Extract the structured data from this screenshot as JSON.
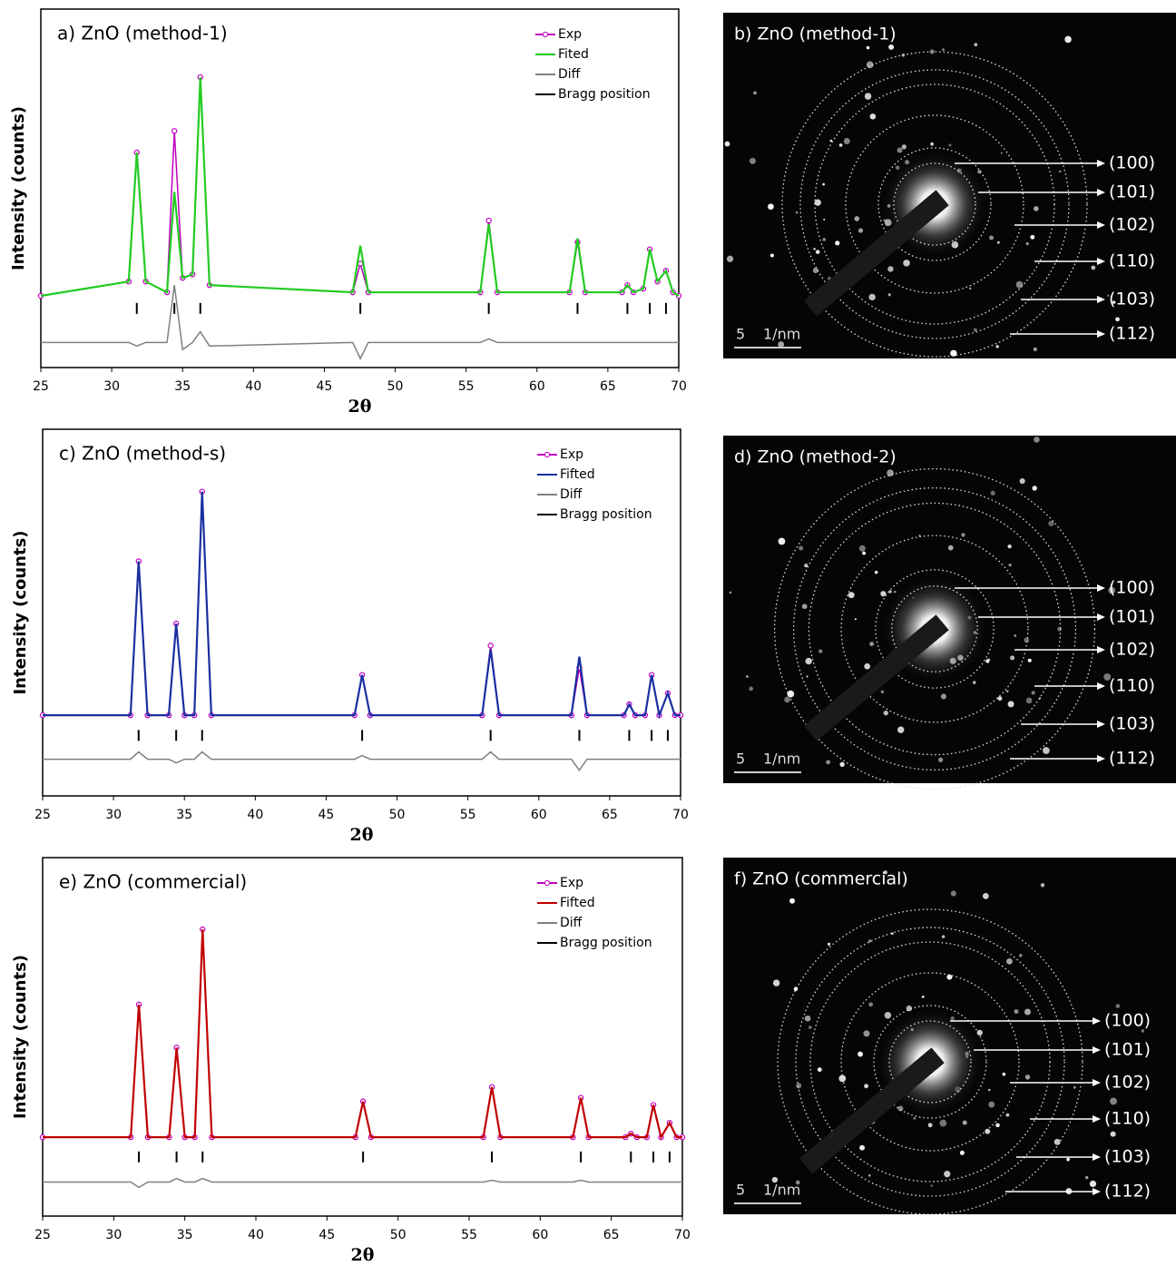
{
  "chart_data": [
    {
      "type": "line",
      "title": "a) ZnO (method-1)",
      "xlabel": "2θ",
      "ylabel": "Intensity (counts)",
      "grid": false,
      "xlim": [
        25,
        70
      ],
      "xticks": [
        25,
        30,
        35,
        40,
        45,
        50,
        55,
        60,
        65,
        70
      ],
      "ylim": [
        0,
        100
      ],
      "x": [
        25,
        31.2,
        31.77,
        32.4,
        33.9,
        34.42,
        35.0,
        35.7,
        36.25,
        36.9,
        47.0,
        47.54,
        48.1,
        56.0,
        56.6,
        57.2,
        62.3,
        62.86,
        63.4,
        66.0,
        66.38,
        66.8,
        67.5,
        67.96,
        68.5,
        69.1,
        69.6,
        70
      ],
      "series": [
        {
          "name": "Exp",
          "color": "#c000c0",
          "values": [
            20,
            24,
            60,
            24,
            21,
            66,
            25,
            26,
            81,
            23,
            21,
            29,
            21,
            21,
            41,
            21,
            21,
            35,
            21,
            21,
            23,
            21,
            22,
            33,
            24,
            27,
            21,
            20
          ]
        },
        {
          "name": "Fited",
          "color": "#22cc22",
          "values": [
            20,
            24,
            60,
            24,
            21,
            49,
            25,
            26,
            81,
            23,
            21,
            34,
            21,
            21,
            40,
            21,
            21,
            36,
            21,
            21,
            23,
            21,
            22,
            33,
            24,
            27,
            21,
            20
          ]
        },
        {
          "name": "Diff",
          "color": "#808080",
          "values": [
            7,
            7,
            6,
            7,
            7,
            23,
            5,
            7,
            10,
            6,
            7,
            2.5,
            7,
            7,
            8,
            7,
            7,
            7,
            7,
            7,
            7,
            7,
            7,
            7,
            7,
            7,
            7,
            7
          ]
        },
        {
          "name": "Bragg position",
          "color": "#000000",
          "x": [
            31.77,
            34.42,
            36.25,
            47.54,
            56.6,
            62.86,
            66.38,
            67.96,
            69.1
          ]
        }
      ]
    },
    {
      "type": "line",
      "title": "c) ZnO (method-s)",
      "xlabel": "2θ",
      "ylabel": "Intensity (counts)",
      "grid": false,
      "xlim": [
        25,
        70
      ],
      "xticks": [
        25,
        30,
        35,
        40,
        45,
        50,
        55,
        60,
        65,
        70
      ],
      "ylim": [
        0,
        100
      ],
      "x": [
        25,
        31.2,
        31.77,
        32.4,
        33.9,
        34.42,
        35.0,
        35.7,
        36.25,
        36.9,
        47.0,
        47.54,
        48.1,
        56.0,
        56.6,
        57.2,
        62.3,
        62.86,
        63.4,
        66.0,
        66.38,
        66.8,
        67.5,
        67.96,
        68.5,
        69.1,
        69.6,
        70
      ],
      "series": [
        {
          "name": "Exp",
          "color": "#c000c0",
          "values": [
            22,
            22,
            64,
            22,
            22,
            47,
            22,
            22,
            83,
            22,
            22,
            33,
            22,
            22,
            41,
            22,
            22,
            35,
            22,
            22,
            25,
            22,
            22,
            33,
            22,
            28,
            22,
            22
          ]
        },
        {
          "name": "Fifted",
          "color": "#1a2fa0",
          "values": [
            22,
            22,
            64,
            22,
            22,
            47,
            22,
            22,
            83,
            22,
            22,
            33,
            22,
            22,
            40,
            22,
            22,
            38,
            22,
            22,
            25,
            22,
            22,
            33,
            22,
            28,
            22,
            22
          ]
        },
        {
          "name": "Diff",
          "color": "#808080",
          "values": [
            10,
            10,
            12,
            10,
            10,
            9,
            10,
            10,
            12,
            10,
            10,
            11,
            10,
            10,
            12,
            10,
            10,
            7,
            10,
            10,
            10,
            10,
            10,
            10,
            10,
            10,
            10,
            10
          ]
        },
        {
          "name": "Bragg position",
          "color": "#000000",
          "x": [
            31.77,
            34.42,
            36.25,
            47.54,
            56.6,
            62.86,
            66.38,
            67.96,
            69.1
          ]
        }
      ]
    },
    {
      "type": "line",
      "title": "e) ZnO (commercial)",
      "xlabel": "2θ",
      "ylabel": "Intensity (counts)",
      "grid": false,
      "xlim": [
        25,
        70
      ],
      "xticks": [
        25,
        30,
        35,
        40,
        45,
        50,
        55,
        60,
        65,
        70
      ],
      "ylim": [
        0,
        100
      ],
      "x": [
        25,
        31.2,
        31.77,
        32.4,
        33.9,
        34.42,
        35.0,
        35.7,
        36.25,
        36.9,
        47.0,
        47.54,
        48.1,
        56.0,
        56.6,
        57.2,
        62.3,
        62.86,
        63.4,
        66.0,
        66.38,
        66.8,
        67.5,
        67.96,
        68.5,
        69.1,
        69.6,
        70
      ],
      "series": [
        {
          "name": "Exp",
          "color": "#c000c0",
          "values": [
            22,
            22,
            59,
            22,
            22,
            47,
            22,
            22,
            80,
            22,
            22,
            32,
            22,
            22,
            36,
            22,
            22,
            33,
            22,
            22,
            23,
            22,
            22,
            31,
            22,
            26,
            22,
            22
          ]
        },
        {
          "name": "Fifted",
          "color": "#c00000",
          "values": [
            22,
            22,
            59,
            22,
            22,
            47,
            22,
            22,
            80,
            22,
            22,
            32,
            22,
            22,
            36,
            22,
            22,
            33,
            22,
            22,
            23,
            22,
            22,
            31,
            22,
            26,
            22,
            22
          ]
        },
        {
          "name": "Diff",
          "color": "#808080",
          "values": [
            9.5,
            9.5,
            8,
            9.5,
            9.5,
            10.5,
            9.5,
            9.5,
            10.5,
            9.5,
            9.5,
            9.5,
            9.5,
            9.5,
            10,
            9.5,
            9.5,
            10,
            9.5,
            9.5,
            9.5,
            9.5,
            9.5,
            9.5,
            9.5,
            9.5,
            9.5,
            9.5
          ]
        },
        {
          "name": "Bragg position",
          "color": "#000000",
          "x": [
            31.77,
            34.42,
            36.25,
            47.54,
            56.6,
            62.86,
            66.38,
            67.96,
            69.1
          ]
        }
      ]
    }
  ],
  "diffraction_patterns": [
    {
      "title": "b)  ZnO (method-1)",
      "scale": 5,
      "unit": "1/nm",
      "rings": [
        "(100)",
        "(101)",
        "(102)",
        "(110)",
        "(103)",
        "(112)"
      ]
    },
    {
      "title": "d) ZnO (method-2)",
      "scale": 5,
      "unit": "1/nm",
      "rings": [
        "(100)",
        "(101)",
        "(102)",
        "(110)",
        "(103)",
        "(112)"
      ]
    },
    {
      "title": "f) ZnO (commercial)",
      "scale": 5,
      "unit": "1/nm",
      "rings": [
        "(100)",
        "(101)",
        "(102)",
        "(110)",
        "(103)",
        "(112)"
      ]
    }
  ]
}
